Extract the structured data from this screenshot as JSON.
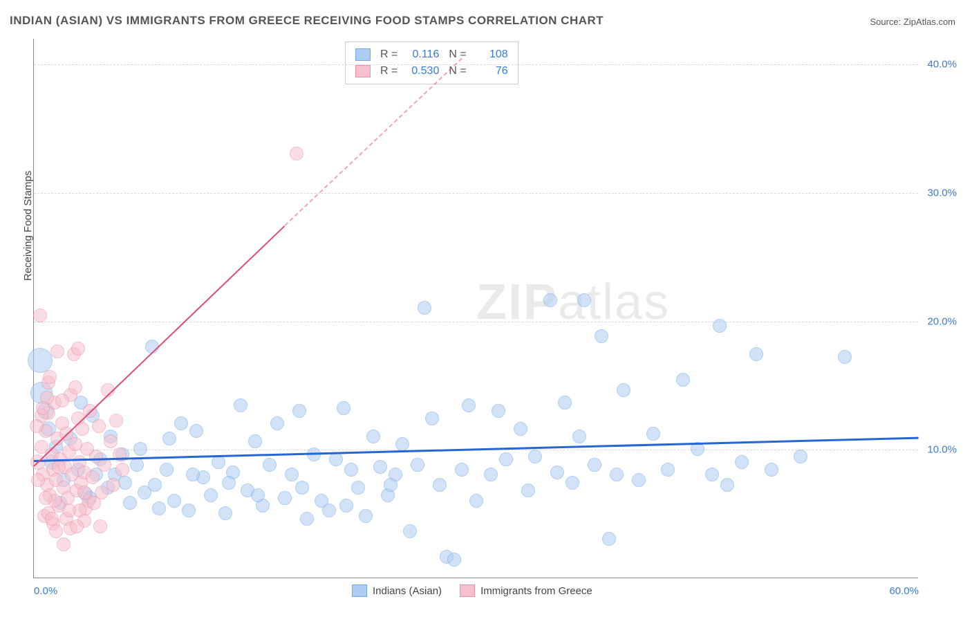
{
  "title": "INDIAN (ASIAN) VS IMMIGRANTS FROM GREECE RECEIVING FOOD STAMPS CORRELATION CHART",
  "source": "Source: ZipAtlas.com",
  "watermark": "ZIPatlas",
  "ylabel": "Receiving Food Stamps",
  "chart": {
    "type": "scatter",
    "xlim": [
      0,
      60
    ],
    "ylim": [
      0,
      42
    ],
    "xticks": [
      {
        "v": 0,
        "label": "0.0%",
        "color": "#3a7bd5"
      },
      {
        "v": 60,
        "label": "60.0%",
        "color": "#3a7bd5"
      }
    ],
    "yticks": [
      {
        "v": 10,
        "label": "10.0%",
        "color": "#3a7bd5"
      },
      {
        "v": 20,
        "label": "20.0%",
        "color": "#3a7bd5"
      },
      {
        "v": 30,
        "label": "30.0%",
        "color": "#3a7bd5"
      },
      {
        "v": 40,
        "label": "40.0%",
        "color": "#3a7bd5"
      }
    ],
    "grid_color": "#d8d8d8",
    "background": "#ffffff",
    "axis_color": "#888888"
  },
  "series": [
    {
      "name": "Indians (Asian)",
      "fill": "#aecdf2",
      "stroke": "#6fa8e8",
      "fill_opacity": 0.55,
      "trend": {
        "x1": 0,
        "y1": 9.2,
        "x2": 60,
        "y2": 11.0,
        "color": "#2566d4",
        "width": 2.5,
        "dash_after_x": null
      },
      "r_value": "0.116",
      "n_value": "108",
      "marker_r": 10,
      "points": [
        [
          0.4,
          16.9,
          18
        ],
        [
          0.5,
          14.4,
          16
        ],
        [
          0.8,
          13.0,
          12
        ],
        [
          1.0,
          11.6,
          11
        ],
        [
          1.2,
          9.0,
          11
        ],
        [
          1.5,
          10.2,
          10
        ],
        [
          2.0,
          7.6,
          10
        ],
        [
          3.0,
          8.4,
          10
        ],
        [
          3.5,
          6.5,
          10
        ],
        [
          4.0,
          12.6,
          10
        ],
        [
          4.5,
          9.2,
          10
        ],
        [
          5.0,
          7.0,
          10
        ],
        [
          5.5,
          8.0,
          10
        ],
        [
          6.0,
          9.6,
          10
        ],
        [
          6.5,
          5.8,
          10
        ],
        [
          7.0,
          8.8,
          10
        ],
        [
          7.5,
          6.6,
          10
        ],
        [
          8.0,
          18.0,
          10
        ],
        [
          8.2,
          7.2,
          10
        ],
        [
          9.0,
          8.4,
          10
        ],
        [
          9.5,
          6.0,
          10
        ],
        [
          10.0,
          12.0,
          10
        ],
        [
          10.5,
          5.2,
          10
        ],
        [
          11.0,
          11.4,
          10
        ],
        [
          11.5,
          7.8,
          10
        ],
        [
          12.0,
          6.4,
          10
        ],
        [
          12.5,
          9.0,
          10
        ],
        [
          13.0,
          5.0,
          10
        ],
        [
          13.5,
          8.2,
          10
        ],
        [
          14.0,
          13.4,
          10
        ],
        [
          14.5,
          6.8,
          10
        ],
        [
          15.0,
          10.6,
          10
        ],
        [
          15.5,
          5.6,
          10
        ],
        [
          16.0,
          8.8,
          10
        ],
        [
          16.5,
          12.0,
          10
        ],
        [
          17.0,
          6.2,
          10
        ],
        [
          17.5,
          8.0,
          10
        ],
        [
          18.0,
          13.0,
          10
        ],
        [
          18.5,
          4.6,
          10
        ],
        [
          19.0,
          9.6,
          10
        ],
        [
          19.5,
          6.0,
          10
        ],
        [
          20.0,
          5.2,
          10
        ],
        [
          20.5,
          9.2,
          10
        ],
        [
          21.0,
          13.2,
          10
        ],
        [
          21.5,
          8.4,
          10
        ],
        [
          22.0,
          7.0,
          10
        ],
        [
          22.5,
          4.8,
          10
        ],
        [
          23.0,
          11.0,
          10
        ],
        [
          23.5,
          8.6,
          10
        ],
        [
          24.0,
          6.4,
          10
        ],
        [
          24.5,
          8.0,
          10
        ],
        [
          25.0,
          10.4,
          10
        ],
        [
          25.5,
          3.6,
          10
        ],
        [
          26.0,
          8.8,
          10
        ],
        [
          26.5,
          21.0,
          10
        ],
        [
          27.0,
          12.4,
          10
        ],
        [
          27.5,
          7.2,
          10
        ],
        [
          28.0,
          1.6,
          10
        ],
        [
          28.5,
          1.4,
          10
        ],
        [
          29.0,
          8.4,
          10
        ],
        [
          29.5,
          13.4,
          10
        ],
        [
          30.0,
          6.0,
          10
        ],
        [
          31.0,
          8.0,
          10
        ],
        [
          31.5,
          13.0,
          10
        ],
        [
          32.0,
          9.2,
          10
        ],
        [
          33.0,
          11.6,
          10
        ],
        [
          33.5,
          6.8,
          10
        ],
        [
          34.0,
          9.4,
          10
        ],
        [
          35.0,
          21.6,
          10
        ],
        [
          35.5,
          8.2,
          10
        ],
        [
          36.0,
          13.6,
          10
        ],
        [
          36.5,
          7.4,
          10
        ],
        [
          37.0,
          11.0,
          10
        ],
        [
          37.3,
          21.6,
          10
        ],
        [
          38.0,
          8.8,
          10
        ],
        [
          38.5,
          18.8,
          10
        ],
        [
          39.0,
          3.0,
          10
        ],
        [
          39.5,
          8.0,
          10
        ],
        [
          40.0,
          14.6,
          10
        ],
        [
          41.0,
          7.6,
          10
        ],
        [
          42.0,
          11.2,
          10
        ],
        [
          43.0,
          8.4,
          10
        ],
        [
          44.0,
          15.4,
          10
        ],
        [
          45.0,
          10.0,
          10
        ],
        [
          46.0,
          8.0,
          10
        ],
        [
          46.5,
          19.6,
          10
        ],
        [
          47.0,
          7.2,
          10
        ],
        [
          48.0,
          9.0,
          10
        ],
        [
          49.0,
          17.4,
          10
        ],
        [
          50.0,
          8.4,
          10
        ],
        [
          52.0,
          9.4,
          10
        ],
        [
          55.0,
          17.2,
          10
        ],
        [
          1.8,
          5.8,
          10
        ],
        [
          2.5,
          10.8,
          10
        ],
        [
          3.2,
          13.6,
          10
        ],
        [
          3.8,
          6.2,
          10
        ],
        [
          4.2,
          8.0,
          10
        ],
        [
          5.2,
          11.0,
          10
        ],
        [
          6.2,
          7.4,
          10
        ],
        [
          7.2,
          10.0,
          10
        ],
        [
          8.5,
          5.4,
          10
        ],
        [
          9.2,
          10.8,
          10
        ],
        [
          10.8,
          8.0,
          10
        ],
        [
          13.2,
          7.4,
          10
        ],
        [
          15.2,
          6.4,
          10
        ],
        [
          18.2,
          7.0,
          10
        ],
        [
          21.2,
          5.6,
          10
        ],
        [
          24.2,
          7.2,
          10
        ]
      ]
    },
    {
      "name": "Immigrants from Greece",
      "fill": "#f6c0ce",
      "stroke": "#ec8fa8",
      "fill_opacity": 0.55,
      "trend": {
        "x1": 0,
        "y1": 8.8,
        "x2": 17,
        "y2": 27.5,
        "color": "#e04b78",
        "width": 2,
        "dash_after_x": 17,
        "dash_x2": 29,
        "dash_y2": 40.5
      },
      "r_value": "0.530",
      "n_value": "76",
      "marker_r": 10,
      "points": [
        [
          0.3,
          9.0,
          11
        ],
        [
          0.5,
          10.2,
          10
        ],
        [
          0.6,
          8.0,
          10
        ],
        [
          0.8,
          11.4,
          10
        ],
        [
          0.9,
          7.2,
          10
        ],
        [
          1.0,
          12.8,
          10
        ],
        [
          1.1,
          6.4,
          10
        ],
        [
          1.2,
          9.6,
          10
        ],
        [
          1.3,
          8.4,
          10
        ],
        [
          1.4,
          13.6,
          10
        ],
        [
          1.5,
          7.6,
          10
        ],
        [
          1.6,
          10.8,
          10
        ],
        [
          1.7,
          5.6,
          10
        ],
        [
          1.8,
          9.2,
          10
        ],
        [
          1.9,
          12.0,
          10
        ],
        [
          2.0,
          7.0,
          10
        ],
        [
          2.1,
          8.6,
          10
        ],
        [
          2.2,
          11.2,
          10
        ],
        [
          2.3,
          6.2,
          10
        ],
        [
          2.4,
          9.8,
          10
        ],
        [
          2.5,
          14.2,
          10
        ],
        [
          2.6,
          8.0,
          10
        ],
        [
          2.7,
          17.4,
          10
        ],
        [
          2.8,
          10.4,
          10
        ],
        [
          2.9,
          6.8,
          10
        ],
        [
          3.0,
          12.4,
          10
        ],
        [
          3.1,
          9.0,
          10
        ],
        [
          3.2,
          7.4,
          10
        ],
        [
          3.3,
          11.6,
          10
        ],
        [
          3.4,
          8.2,
          10
        ],
        [
          3.5,
          5.4,
          10
        ],
        [
          3.6,
          10.0,
          10
        ],
        [
          3.8,
          13.0,
          10
        ],
        [
          4.0,
          7.8,
          10
        ],
        [
          4.2,
          9.4,
          10
        ],
        [
          4.4,
          11.8,
          10
        ],
        [
          4.6,
          6.6,
          10
        ],
        [
          4.8,
          8.8,
          10
        ],
        [
          5.0,
          14.6,
          10
        ],
        [
          5.2,
          10.6,
          10
        ],
        [
          5.4,
          7.2,
          10
        ],
        [
          5.6,
          12.2,
          10
        ],
        [
          5.8,
          9.6,
          10
        ],
        [
          6.0,
          8.4,
          10
        ],
        [
          0.4,
          20.4,
          10
        ],
        [
          0.7,
          4.8,
          10
        ],
        [
          1.0,
          15.2,
          10
        ],
        [
          1.3,
          4.2,
          10
        ],
        [
          1.6,
          17.6,
          10
        ],
        [
          1.0,
          5.0,
          10
        ],
        [
          2.2,
          4.6,
          10
        ],
        [
          2.5,
          3.8,
          10
        ],
        [
          2.8,
          14.8,
          10
        ],
        [
          3.1,
          5.2,
          10
        ],
        [
          3.4,
          4.4,
          10
        ],
        [
          3.7,
          6.0,
          10
        ],
        [
          4.1,
          5.8,
          10
        ],
        [
          4.5,
          4.0,
          10
        ],
        [
          0.5,
          12.6,
          10
        ],
        [
          0.9,
          14.0,
          10
        ],
        [
          1.4,
          6.0,
          10
        ],
        [
          1.9,
          13.8,
          10
        ],
        [
          2.4,
          5.2,
          10
        ],
        [
          2.9,
          4.0,
          10
        ],
        [
          3.4,
          6.6,
          10
        ],
        [
          0.2,
          11.8,
          10
        ],
        [
          0.6,
          13.2,
          10
        ],
        [
          1.1,
          15.6,
          10
        ],
        [
          3.0,
          17.8,
          10
        ],
        [
          1.5,
          3.6,
          10
        ],
        [
          2.0,
          2.6,
          10
        ],
        [
          17.8,
          33.0,
          10
        ],
        [
          0.3,
          7.6,
          10
        ],
        [
          0.8,
          6.2,
          10
        ],
        [
          1.2,
          4.6,
          10
        ],
        [
          1.7,
          8.6,
          10
        ]
      ]
    }
  ],
  "legend_top": {
    "rows": [
      {
        "swatch_fill": "#aecdf2",
        "swatch_stroke": "#6fa8e8",
        "r": "0.116",
        "n": "108"
      },
      {
        "swatch_fill": "#f6c0ce",
        "swatch_stroke": "#ec8fa8",
        "r": "0.530",
        "n": "76"
      }
    ],
    "stat_color": "#3a7bd5"
  },
  "legend_bottom": [
    {
      "swatch_fill": "#aecdf2",
      "swatch_stroke": "#6fa8e8",
      "label": "Indians (Asian)"
    },
    {
      "swatch_fill": "#f6c0ce",
      "swatch_stroke": "#ec8fa8",
      "label": "Immigrants from Greece"
    }
  ]
}
